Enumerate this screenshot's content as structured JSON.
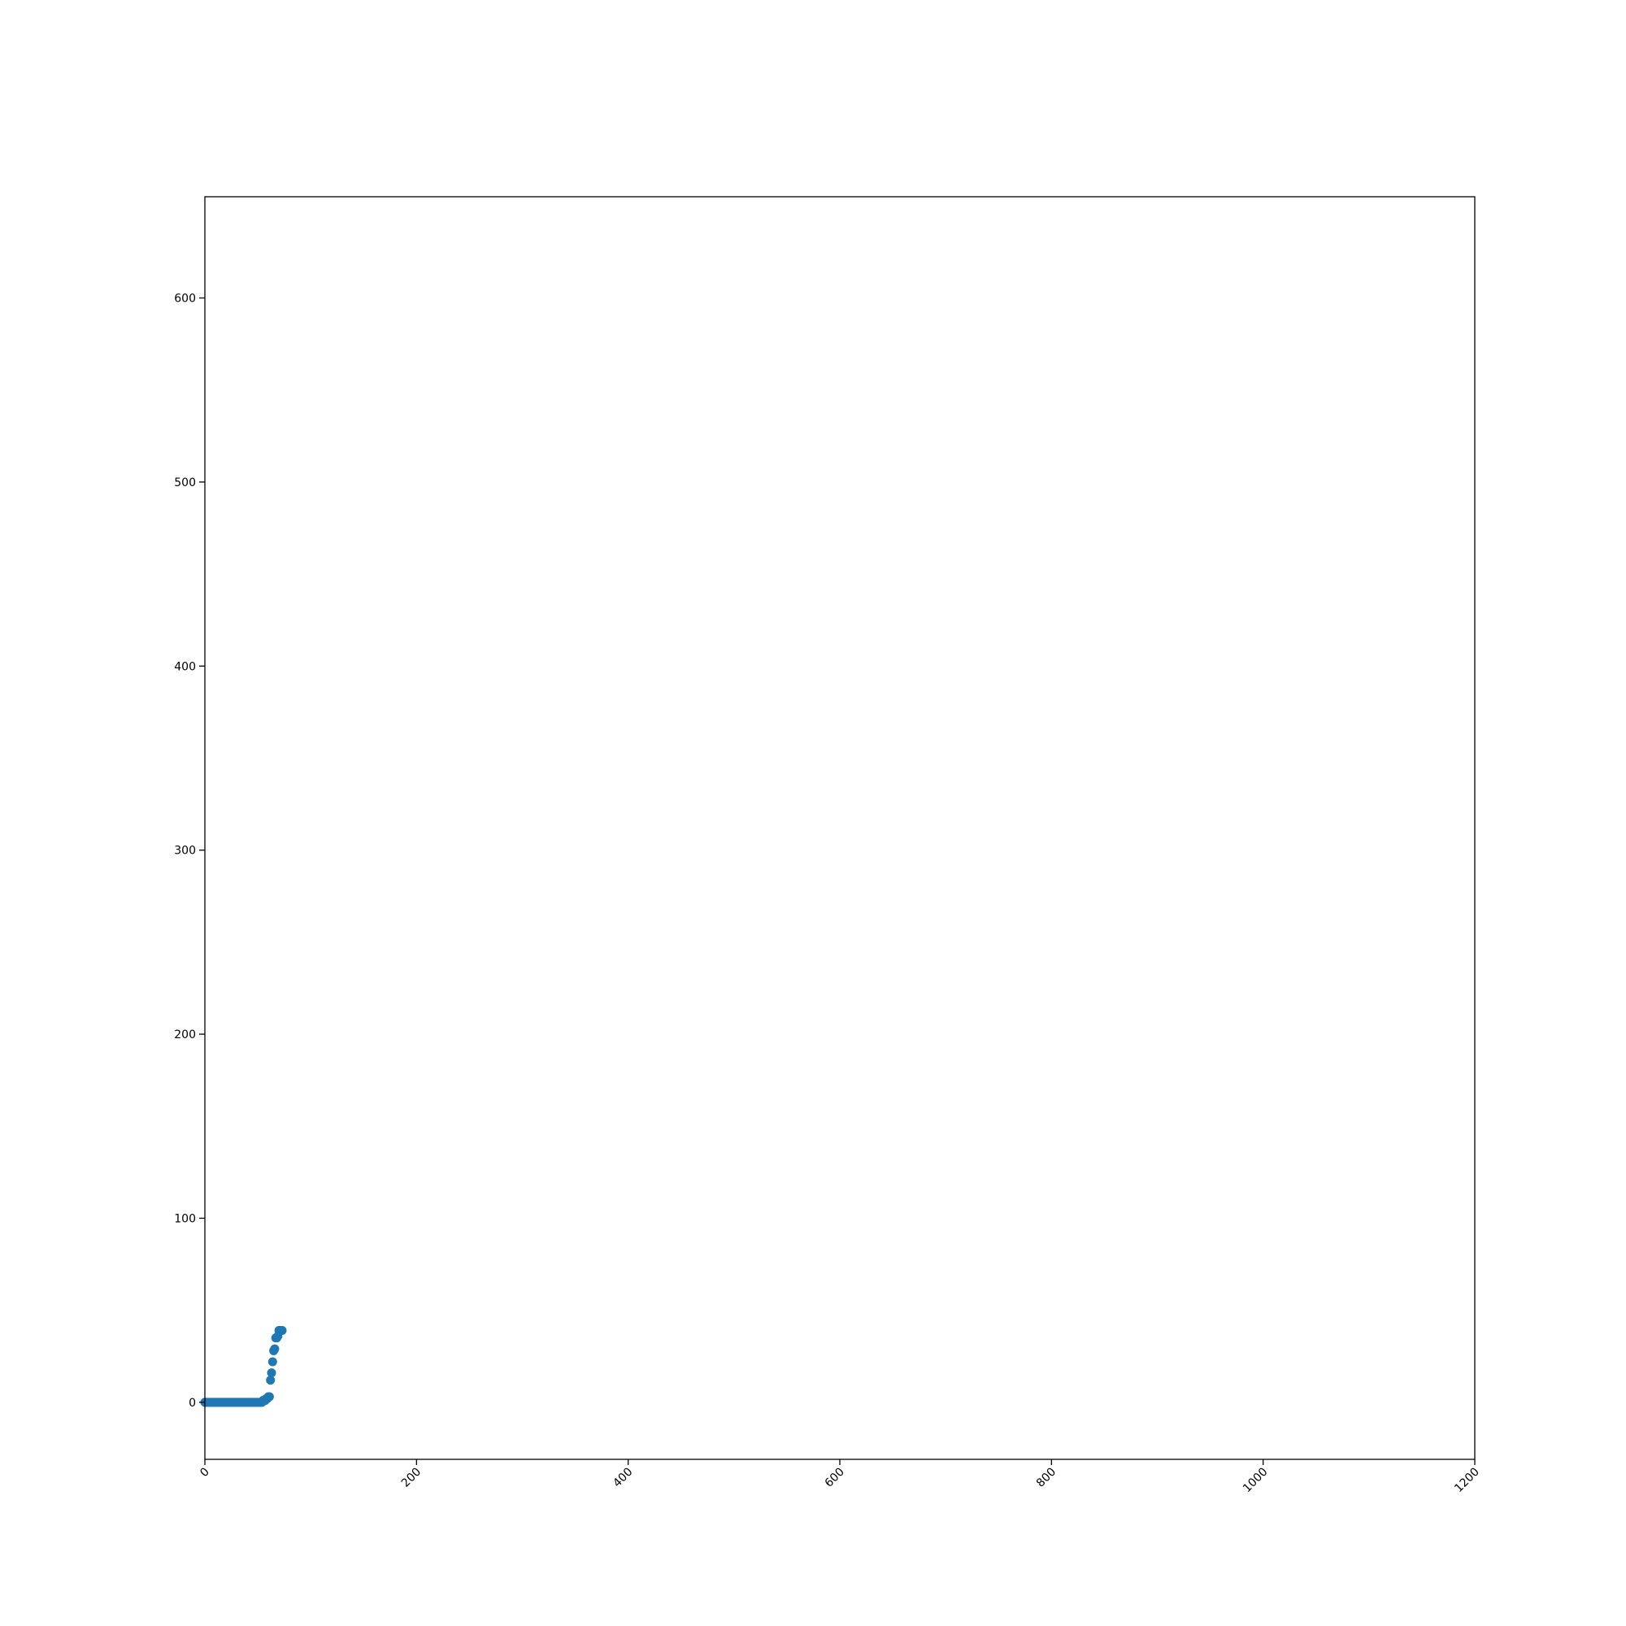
{
  "chart_data": {
    "type": "scatter",
    "title": "",
    "xlabel": "",
    "ylabel": "",
    "xlim": [
      0,
      1200
    ],
    "ylim": [
      -31,
      655
    ],
    "xticks": [
      0,
      200,
      400,
      600,
      800,
      1000,
      1200
    ],
    "yticks": [
      0,
      100,
      200,
      300,
      400,
      500,
      600
    ],
    "xtick_labels": [
      "0",
      "200",
      "400",
      "600",
      "800",
      "1000",
      "1200"
    ],
    "ytick_labels": [
      "0",
      "100",
      "200",
      "300",
      "400",
      "500",
      "600"
    ],
    "xtick_rotation": "45 degrees",
    "grid": false,
    "marker_color": "#1f77b4",
    "series": [
      {
        "x": [
          0,
          1,
          2,
          3,
          4,
          5,
          6,
          7,
          8,
          9,
          10,
          11,
          12,
          13,
          14,
          15,
          16,
          17,
          18,
          19,
          20,
          21,
          22,
          23,
          24,
          25,
          26,
          27,
          28,
          29,
          30,
          31,
          32,
          33,
          34,
          35,
          36,
          37,
          38,
          39,
          40,
          41,
          42,
          43,
          44,
          45,
          46,
          47,
          48,
          49,
          50,
          51,
          52,
          53,
          54,
          55,
          56,
          57,
          58,
          59,
          60,
          61,
          62,
          63,
          64,
          65,
          66,
          67,
          68,
          69,
          70,
          71,
          72,
          73
        ],
        "y": [
          0,
          0,
          0,
          0,
          0,
          0,
          0,
          0,
          0,
          0,
          0,
          0,
          0,
          0,
          0,
          0,
          0,
          0,
          0,
          0,
          0,
          0,
          0,
          0,
          0,
          0,
          0,
          0,
          0,
          0,
          0,
          0,
          0,
          0,
          0,
          0,
          0,
          0,
          0,
          0,
          0,
          0,
          0,
          0,
          0,
          0,
          0,
          0,
          0,
          0,
          0,
          0,
          0,
          0,
          0,
          1,
          1,
          1,
          2,
          2,
          3,
          3,
          12,
          16,
          22,
          28,
          29,
          35,
          35,
          36,
          39,
          39,
          39,
          39
        ]
      }
    ]
  }
}
